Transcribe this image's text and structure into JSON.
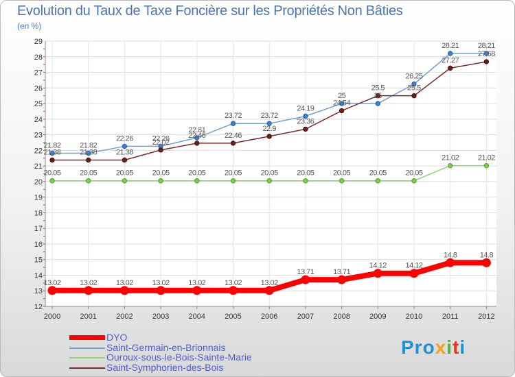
{
  "header": {
    "title": "Evolution du Taux de Taxe Foncière sur les Propriétés Non Bâties",
    "unit": "(en %)"
  },
  "logo": {
    "parts": [
      "Pro",
      "x",
      "i",
      "t",
      "i"
    ]
  },
  "chart_data": {
    "type": "line",
    "title": "Evolution du Taux de Taxe Foncière sur les Propriétés Non Bâties",
    "ylabel": "(en %)",
    "xlabel": "",
    "ylim": [
      12,
      29
    ],
    "yticks": [
      12,
      13,
      14,
      15,
      16,
      17,
      18,
      19,
      20,
      21,
      22,
      23,
      24,
      25,
      26,
      27,
      28,
      29
    ],
    "grid": true,
    "legend_position": "bottom-left",
    "categories": [
      "2000",
      "2001",
      "2002",
      "2003",
      "2004",
      "2005",
      "2006",
      "2007",
      "2008",
      "2009",
      "2010",
      "2011",
      "2012"
    ],
    "series": [
      {
        "name": "DYO",
        "color": "#ff0000",
        "values": [
          13.02,
          13.02,
          13.02,
          13.02,
          13.02,
          13.02,
          13.02,
          13.71,
          13.71,
          14.12,
          14.12,
          14.8,
          14.8
        ],
        "labels": [
          "13.02",
          "13.02",
          "13.02",
          "13.02",
          "13.02",
          "13.02",
          "13.02",
          "13.71",
          "13.71",
          "14.12",
          "14.12",
          "14.8",
          "14.8"
        ]
      },
      {
        "name": "Saint-Germain-en-Brionnais",
        "color": "#6f9fd8",
        "values": [
          21.82,
          21.82,
          22.26,
          22.26,
          22.81,
          23.72,
          23.72,
          24.19,
          25,
          25,
          26.25,
          28.21,
          28.21
        ],
        "labels": [
          "21.82",
          "21.82",
          "22.26",
          "22.26",
          "22.81",
          "23.72",
          "23.72",
          "24.19",
          "25",
          "25",
          "26.25",
          "28.21",
          "28.21"
        ]
      },
      {
        "name": "Ouroux-sous-le-Bois-Sainte-Marie",
        "color": "#8fd66e",
        "values": [
          20.05,
          20.05,
          20.05,
          20.05,
          20.05,
          20.05,
          20.05,
          20.05,
          20.05,
          20.05,
          20.05,
          21.02,
          21.02
        ],
        "labels": [
          "20.05",
          "20.05",
          "20.05",
          "20.05",
          "20.05",
          "20.05",
          "20.05",
          "20.05",
          "20.05",
          "20.05",
          "20.05",
          "21.02",
          "21.02"
        ]
      },
      {
        "name": "Saint-Symphorien-des-Bois",
        "color": "#7a2a2a",
        "values": [
          21.38,
          21.38,
          21.38,
          22.02,
          22.46,
          22.46,
          22.9,
          23.36,
          24.54,
          25.5,
          25.5,
          27.27,
          27.68
        ],
        "labels": [
          "21.38",
          "21.38",
          "21.38",
          "22.02",
          "22.46",
          "22.46",
          "22.9",
          "23.36",
          "24.54",
          "25.5",
          "25.5",
          "27.27",
          "27.68"
        ]
      }
    ]
  }
}
